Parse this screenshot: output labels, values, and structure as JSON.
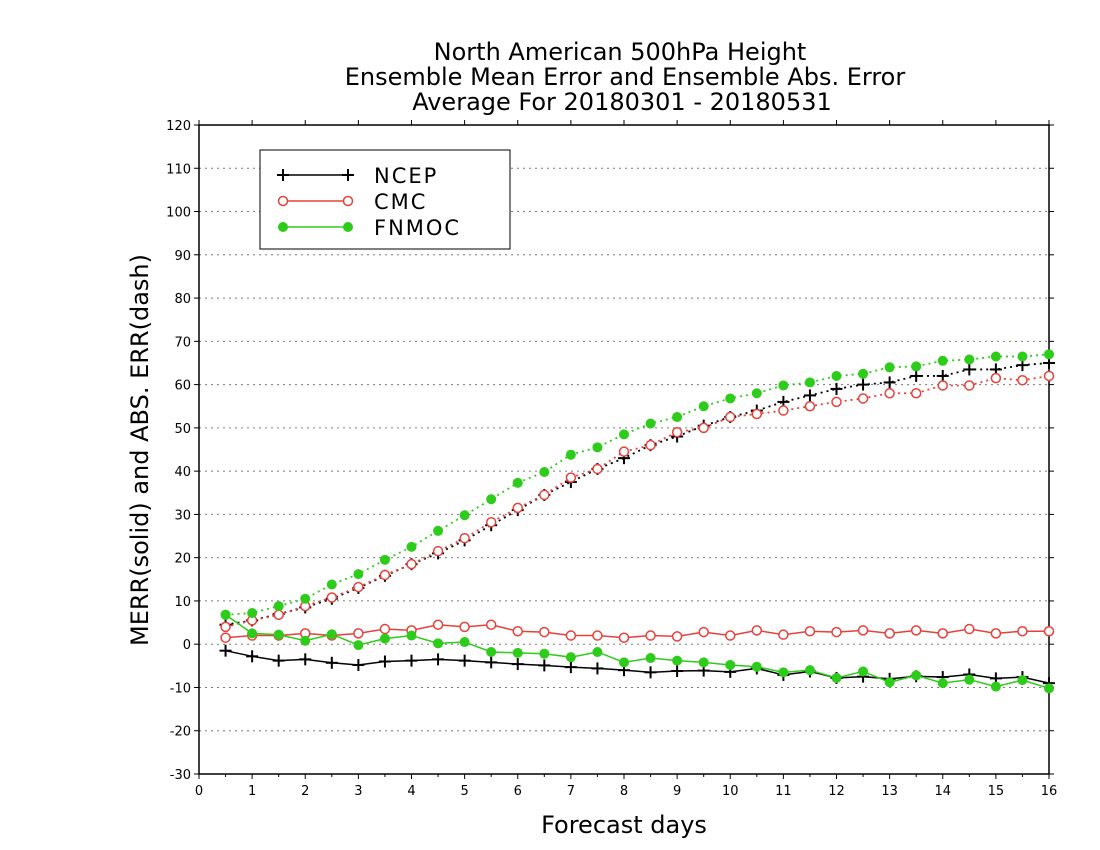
{
  "chart_data": {
    "type": "line",
    "title_lines": [
      "North American 500hPa Height",
      "Ensemble Mean Error and Ensemble Abs. Error",
      "Average For 20180301 - 20180531"
    ],
    "xlabel": "Forecast days",
    "ylabel": "MERR(solid) and ABS. ERR(dash)",
    "xlim": [
      0,
      16
    ],
    "ylim": [
      -30,
      120
    ],
    "x_ticks": [
      0,
      1,
      2,
      3,
      4,
      5,
      6,
      7,
      8,
      9,
      10,
      11,
      12,
      13,
      14,
      15,
      16
    ],
    "y_ticks": [
      -30,
      -20,
      -10,
      0,
      10,
      20,
      30,
      40,
      50,
      60,
      70,
      80,
      90,
      100,
      110,
      120
    ],
    "grid": "dotted horizontal",
    "legend_position": "top-left",
    "x": [
      0.5,
      1,
      1.5,
      2,
      2.5,
      3,
      3.5,
      4,
      4.5,
      5,
      5.5,
      6,
      6.5,
      7,
      7.5,
      8,
      8.5,
      9,
      9.5,
      10,
      10.5,
      11,
      11.5,
      12,
      12.5,
      13,
      13.5,
      14,
      14.5,
      15,
      15.5,
      16
    ],
    "series": [
      {
        "name": "NCEP",
        "color": "#000000",
        "marker": "plus",
        "merr": [
          -1.5,
          -2.8,
          -3.8,
          -3.5,
          -4.3,
          -4.8,
          -4.0,
          -3.8,
          -3.5,
          -3.8,
          -4.2,
          -4.6,
          -4.9,
          -5.3,
          -5.6,
          -6.0,
          -6.5,
          -6.2,
          -6.1,
          -6.4,
          -5.6,
          -7.1,
          -6.3,
          -7.8,
          -7.5,
          -8.0,
          -7.4,
          -7.6,
          -7.0,
          -7.9,
          -7.6,
          -9.0
        ],
        "abs_err": [
          4.5,
          5.5,
          7.0,
          8.5,
          10.5,
          13.0,
          15.8,
          18.5,
          21.0,
          24.0,
          27.5,
          31.0,
          34.5,
          37.5,
          40.5,
          43.0,
          46.0,
          48.0,
          50.5,
          52.5,
          54.0,
          56.0,
          57.5,
          59.0,
          60.0,
          60.5,
          62.0,
          62.0,
          63.5,
          63.5,
          64.5,
          65.0
        ]
      },
      {
        "name": "CMC",
        "color": "#e8403a",
        "marker": "open-circle",
        "merr": [
          1.5,
          2.0,
          2.0,
          2.5,
          2.0,
          2.5,
          3.5,
          3.2,
          4.5,
          4.0,
          4.5,
          3.0,
          2.8,
          2.0,
          2.0,
          1.5,
          2.0,
          1.8,
          2.8,
          2.0,
          3.2,
          2.2,
          3.0,
          2.8,
          3.2,
          2.5,
          3.2,
          2.5,
          3.5,
          2.5,
          3.0,
          3.0
        ],
        "abs_err": [
          4.0,
          5.5,
          6.8,
          8.8,
          10.8,
          13.2,
          16.0,
          18.5,
          21.5,
          24.5,
          28.2,
          31.5,
          34.5,
          38.5,
          40.5,
          44.5,
          46.0,
          49.0,
          50.0,
          52.5,
          53.2,
          54.0,
          55.0,
          56.0,
          56.8,
          58.0,
          58.0,
          59.8,
          59.8,
          61.5,
          61.0,
          62.0
        ]
      },
      {
        "name": "FNMOC",
        "color": "#2ecc1a",
        "marker": "filled-circle",
        "merr": [
          6.8,
          2.5,
          2.2,
          0.8,
          2.3,
          -0.2,
          1.3,
          2.0,
          0.2,
          0.5,
          -1.8,
          -2.0,
          -2.2,
          -3.0,
          -1.8,
          -4.2,
          -3.2,
          -3.8,
          -4.2,
          -4.8,
          -5.2,
          -6.5,
          -6.0,
          -7.8,
          -6.3,
          -8.8,
          -7.2,
          -9.0,
          -8.2,
          -9.8,
          -8.3,
          -10.2
        ],
        "abs_err": [
          6.8,
          7.2,
          8.8,
          10.5,
          13.8,
          16.2,
          19.5,
          22.5,
          26.2,
          29.8,
          33.5,
          37.3,
          39.8,
          43.8,
          45.5,
          48.5,
          51.0,
          52.5,
          55.0,
          56.8,
          58.0,
          59.8,
          60.5,
          62.0,
          62.5,
          64.0,
          64.2,
          65.5,
          65.8,
          66.5,
          66.5,
          67.0
        ]
      }
    ]
  }
}
